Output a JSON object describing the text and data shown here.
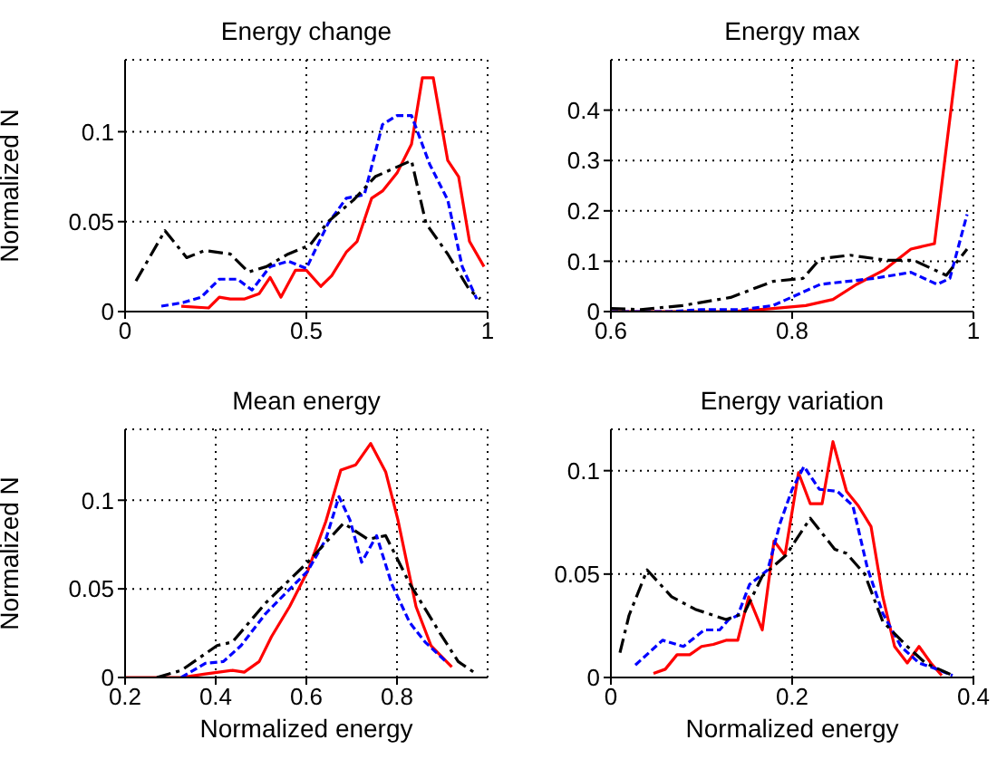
{
  "chart_data": [
    {
      "type": "line",
      "title": "Energy change",
      "ylabel": "Normalized N",
      "xlim": [
        0,
        1
      ],
      "xticks": [
        0,
        0.5,
        1
      ],
      "ylim": [
        0,
        0.14
      ],
      "yticks": [
        0,
        0.05,
        0.1
      ],
      "grid": true,
      "series": [
        {
          "color": "#ff0000",
          "line_style": "solid",
          "x": [
            0.155,
            0.23,
            0.26,
            0.29,
            0.33,
            0.37,
            0.4,
            0.43,
            0.47,
            0.5,
            0.54,
            0.57,
            0.61,
            0.64,
            0.68,
            0.71,
            0.75,
            0.79,
            0.82,
            0.85,
            0.89,
            0.92,
            0.95,
            0.99
          ],
          "values": [
            0.003,
            0.002,
            0.008,
            0.007,
            0.007,
            0.01,
            0.019,
            0.008,
            0.023,
            0.023,
            0.014,
            0.02,
            0.033,
            0.039,
            0.063,
            0.067,
            0.077,
            0.093,
            0.13,
            0.13,
            0.084,
            0.075,
            0.039,
            0.025
          ]
        },
        {
          "color": "#0000ff",
          "line_style": "dashed",
          "x": [
            0.1,
            0.16,
            0.21,
            0.26,
            0.31,
            0.35,
            0.4,
            0.45,
            0.5,
            0.56,
            0.61,
            0.66,
            0.71,
            0.75,
            0.79,
            0.84,
            0.89,
            0.93,
            0.97
          ],
          "values": [
            0.003,
            0.005,
            0.008,
            0.018,
            0.018,
            0.012,
            0.025,
            0.028,
            0.024,
            0.049,
            0.063,
            0.065,
            0.104,
            0.109,
            0.109,
            0.082,
            0.062,
            0.025,
            0.007
          ]
        },
        {
          "color": "#000000",
          "line_style": "dashdot",
          "x": [
            0.03,
            0.11,
            0.17,
            0.22,
            0.29,
            0.34,
            0.39,
            0.45,
            0.51,
            0.56,
            0.63,
            0.69,
            0.79,
            0.83,
            0.89,
            0.95,
            0.98
          ],
          "values": [
            0.017,
            0.045,
            0.03,
            0.034,
            0.032,
            0.022,
            0.025,
            0.032,
            0.037,
            0.05,
            0.062,
            0.075,
            0.084,
            0.049,
            0.032,
            0.012,
            0.007
          ]
        }
      ]
    },
    {
      "type": "line",
      "title": "Energy max",
      "xlim": [
        0.6,
        1
      ],
      "xticks": [
        0.6,
        0.8,
        1
      ],
      "ylim": [
        0,
        0.5
      ],
      "yticks": [
        0,
        0.1,
        0.2,
        0.3,
        0.4
      ],
      "grid": true,
      "series": [
        {
          "color": "#ff0000",
          "line_style": "solid",
          "x": [
            0.6,
            0.666,
            0.732,
            0.779,
            0.815,
            0.845,
            0.871,
            0.901,
            0.931,
            0.957,
            0.982
          ],
          "values": [
            0,
            0,
            0,
            0.006,
            0.012,
            0.024,
            0.054,
            0.082,
            0.124,
            0.135,
            0.5
          ]
        },
        {
          "color": "#0000ff",
          "line_style": "dashed",
          "x": [
            0.6,
            0.666,
            0.699,
            0.745,
            0.779,
            0.831,
            0.891,
            0.931,
            0.96,
            0.974,
            0.993
          ],
          "values": [
            0,
            0,
            0.004,
            0.004,
            0.012,
            0.054,
            0.066,
            0.078,
            0.054,
            0.066,
            0.193
          ]
        },
        {
          "color": "#000000",
          "line_style": "dashdot",
          "x": [
            0.6,
            0.633,
            0.679,
            0.732,
            0.779,
            0.812,
            0.831,
            0.864,
            0.904,
            0.934,
            0.97,
            0.993
          ],
          "values": [
            0.006,
            0.004,
            0.012,
            0.028,
            0.06,
            0.066,
            0.105,
            0.112,
            0.102,
            0.102,
            0.072,
            0.124
          ]
        }
      ]
    },
    {
      "type": "line",
      "title": "Mean energy",
      "xlabel": "Normalized energy",
      "ylabel": "Normalized N",
      "xlim": [
        0.2,
        1
      ],
      "xticks": [
        0.2,
        0.4,
        0.6,
        0.8
      ],
      "ylim": [
        0,
        0.14
      ],
      "yticks": [
        0,
        0.05,
        0.1
      ],
      "grid": true,
      "series": [
        {
          "color": "#ff0000",
          "line_style": "solid",
          "x": [
            0.2,
            0.257,
            0.324,
            0.377,
            0.437,
            0.463,
            0.496,
            0.523,
            0.563,
            0.603,
            0.643,
            0.676,
            0.709,
            0.742,
            0.775,
            0.802,
            0.842,
            0.875,
            0.921
          ],
          "values": [
            0,
            0,
            0,
            0.002,
            0.004,
            0.003,
            0.009,
            0.023,
            0.04,
            0.06,
            0.088,
            0.117,
            0.12,
            0.132,
            0.116,
            0.089,
            0.04,
            0.018,
            0.006
          ]
        },
        {
          "color": "#0000ff",
          "line_style": "dashed",
          "x": [
            0.324,
            0.377,
            0.417,
            0.456,
            0.51,
            0.556,
            0.603,
            0.643,
            0.672,
            0.696,
            0.722,
            0.755,
            0.788,
            0.828,
            0.862,
            0.908
          ],
          "values": [
            0,
            0.008,
            0.009,
            0.018,
            0.036,
            0.048,
            0.06,
            0.078,
            0.102,
            0.089,
            0.065,
            0.08,
            0.053,
            0.031,
            0.02,
            0.009
          ]
        },
        {
          "color": "#000000",
          "line_style": "dashdot",
          "x": [
            0.27,
            0.324,
            0.403,
            0.437,
            0.51,
            0.603,
            0.682,
            0.736,
            0.775,
            0.828,
            0.895,
            0.935,
            0.975
          ],
          "values": [
            0,
            0.004,
            0.018,
            0.02,
            0.042,
            0.065,
            0.087,
            0.078,
            0.08,
            0.053,
            0.025,
            0.009,
            0.002
          ]
        }
      ]
    },
    {
      "type": "line",
      "title": "Energy variation",
      "xlabel": "Normalized energy",
      "xlim": [
        0,
        0.4
      ],
      "xticks": [
        0,
        0.2,
        0.4
      ],
      "ylim": [
        0,
        0.12
      ],
      "yticks": [
        0,
        0.05,
        0.1
      ],
      "grid": true,
      "series": [
        {
          "color": "#ff0000",
          "line_style": "solid",
          "x": [
            0.047,
            0.06,
            0.073,
            0.087,
            0.1,
            0.113,
            0.127,
            0.14,
            0.152,
            0.167,
            0.18,
            0.192,
            0.207,
            0.22,
            0.233,
            0.245,
            0.26,
            0.273,
            0.287,
            0.3,
            0.313,
            0.327,
            0.34,
            0.353,
            0.365
          ],
          "values": [
            0.002,
            0.004,
            0.011,
            0.011,
            0.015,
            0.016,
            0.018,
            0.018,
            0.039,
            0.023,
            0.066,
            0.059,
            0.099,
            0.084,
            0.084,
            0.114,
            0.09,
            0.083,
            0.073,
            0.039,
            0.015,
            0.007,
            0.015,
            0.007,
            0.001
          ]
        },
        {
          "color": "#0000ff",
          "line_style": "dashed",
          "x": [
            0.027,
            0.057,
            0.08,
            0.103,
            0.12,
            0.13,
            0.14,
            0.153,
            0.173,
            0.187,
            0.2,
            0.213,
            0.23,
            0.25,
            0.267,
            0.283,
            0.3,
            0.32,
            0.34,
            0.36,
            0.377
          ],
          "values": [
            0.006,
            0.018,
            0.015,
            0.023,
            0.023,
            0.028,
            0.03,
            0.045,
            0.052,
            0.075,
            0.091,
            0.102,
            0.091,
            0.09,
            0.083,
            0.053,
            0.031,
            0.015,
            0.007,
            0.004,
            0.001
          ]
        },
        {
          "color": "#000000",
          "line_style": "dashdot",
          "x": [
            0.01,
            0.02,
            0.04,
            0.067,
            0.093,
            0.127,
            0.147,
            0.167,
            0.193,
            0.22,
            0.247,
            0.26,
            0.28,
            0.3,
            0.327,
            0.347,
            0.377
          ],
          "values": [
            0.012,
            0.03,
            0.052,
            0.039,
            0.033,
            0.028,
            0.031,
            0.049,
            0.059,
            0.077,
            0.062,
            0.06,
            0.05,
            0.027,
            0.015,
            0.007,
            0.001
          ]
        }
      ]
    }
  ]
}
